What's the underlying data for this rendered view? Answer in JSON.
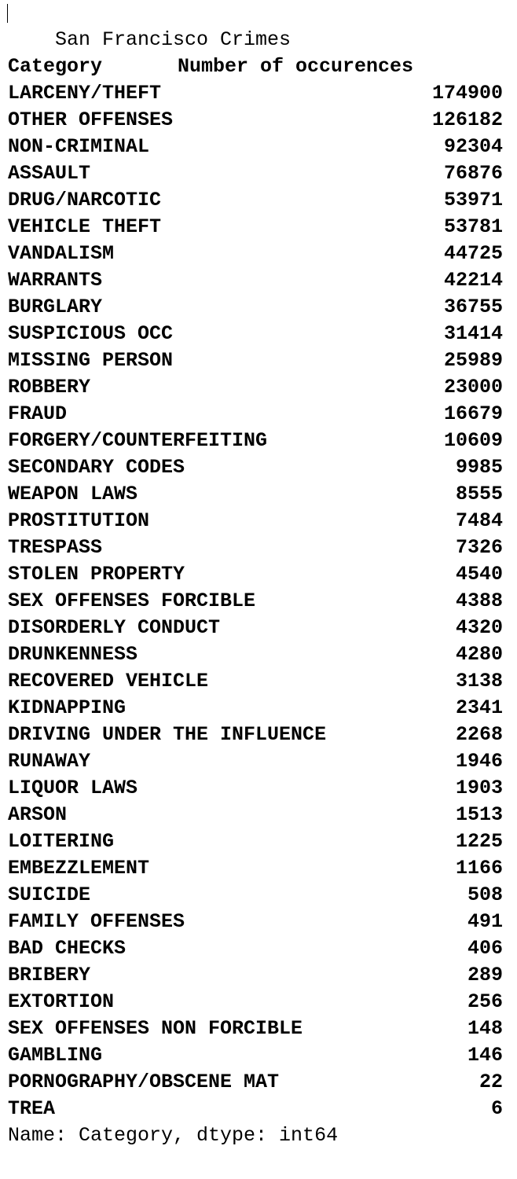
{
  "title": "San Francisco Crimes",
  "header": {
    "category_label": "Category",
    "count_label": "Number of occurences"
  },
  "rows": [
    {
      "category": "LARCENY/THEFT",
      "count": "174900"
    },
    {
      "category": "OTHER OFFENSES",
      "count": "126182"
    },
    {
      "category": "NON-CRIMINAL",
      "count": "92304"
    },
    {
      "category": "ASSAULT",
      "count": "76876"
    },
    {
      "category": "DRUG/NARCOTIC",
      "count": "53971"
    },
    {
      "category": "VEHICLE THEFT",
      "count": "53781"
    },
    {
      "category": "VANDALISM",
      "count": "44725"
    },
    {
      "category": "WARRANTS",
      "count": "42214"
    },
    {
      "category": "BURGLARY",
      "count": "36755"
    },
    {
      "category": "SUSPICIOUS OCC",
      "count": "31414"
    },
    {
      "category": "MISSING PERSON",
      "count": "25989"
    },
    {
      "category": "ROBBERY",
      "count": "23000"
    },
    {
      "category": "FRAUD",
      "count": "16679"
    },
    {
      "category": "FORGERY/COUNTERFEITING",
      "count": "10609"
    },
    {
      "category": "SECONDARY CODES",
      "count": "9985"
    },
    {
      "category": "WEAPON LAWS",
      "count": "8555"
    },
    {
      "category": "PROSTITUTION",
      "count": "7484"
    },
    {
      "category": "TRESPASS",
      "count": "7326"
    },
    {
      "category": "STOLEN PROPERTY",
      "count": "4540"
    },
    {
      "category": "SEX OFFENSES FORCIBLE",
      "count": "4388"
    },
    {
      "category": "DISORDERLY CONDUCT",
      "count": "4320"
    },
    {
      "category": "DRUNKENNESS",
      "count": "4280"
    },
    {
      "category": "RECOVERED VEHICLE",
      "count": "3138"
    },
    {
      "category": "KIDNAPPING",
      "count": "2341"
    },
    {
      "category": "DRIVING UNDER THE INFLUENCE",
      "count": "2268"
    },
    {
      "category": "RUNAWAY",
      "count": "1946"
    },
    {
      "category": "LIQUOR LAWS",
      "count": "1903"
    },
    {
      "category": "ARSON",
      "count": "1513"
    },
    {
      "category": "LOITERING",
      "count": "1225"
    },
    {
      "category": "EMBEZZLEMENT",
      "count": "1166"
    },
    {
      "category": "SUICIDE",
      "count": "508"
    },
    {
      "category": "FAMILY OFFENSES",
      "count": "491"
    },
    {
      "category": "BAD CHECKS",
      "count": "406"
    },
    {
      "category": "BRIBERY",
      "count": "289"
    },
    {
      "category": "EXTORTION",
      "count": "256"
    },
    {
      "category": "SEX OFFENSES NON FORCIBLE",
      "count": "148"
    },
    {
      "category": "GAMBLING",
      "count": "146"
    },
    {
      "category": "PORNOGRAPHY/OBSCENE MAT",
      "count": "22"
    },
    {
      "category": "TREA",
      "count": "6"
    }
  ],
  "footer": "Name: Category, dtype: int64"
}
